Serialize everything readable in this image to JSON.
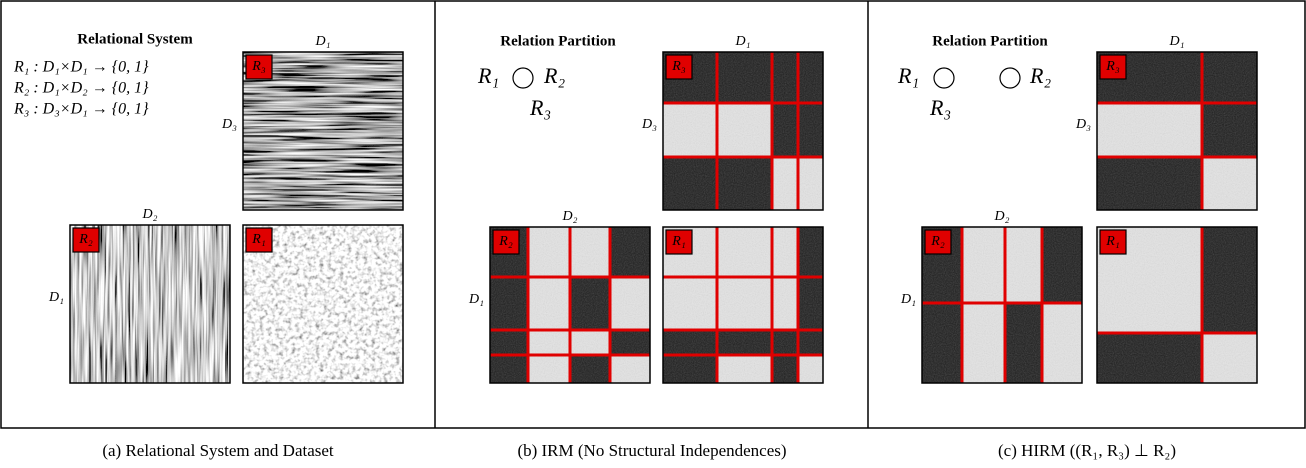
{
  "panels": [
    {
      "title": "Relational System",
      "equations": [
        "R₁ : D₁×D₁ → {0, 1}",
        "R₂ : D₁×D₂ → {0, 1}",
        "R₃ : D₃×D₁ → {0, 1}"
      ],
      "matrices": [
        {
          "badge": "R₃",
          "top_label": "D₁",
          "side_label": "D₃"
        },
        {
          "badge": "R₂",
          "top_label": "D₂",
          "side_label": "D₁"
        },
        {
          "badge": "R₁"
        }
      ],
      "caption": "(a) Relational System and Dataset"
    },
    {
      "title": "Relation Partition",
      "relations": [
        "R₁",
        "R₂",
        "R₃"
      ],
      "matrices": [
        {
          "badge": "R₃",
          "top_label": "D₁",
          "side_label": "D₃"
        },
        {
          "badge": "R₂",
          "top_label": "D₂",
          "side_label": "D₁"
        },
        {
          "badge": "R₁"
        }
      ],
      "caption": "(b) IRM (No Structural Independences)"
    },
    {
      "title": "Relation Partition",
      "relations": [
        "R₁",
        "R₂",
        "R₃"
      ],
      "matrices": [
        {
          "badge": "R₃",
          "top_label": "D₁",
          "side_label": "D₃"
        },
        {
          "badge": "R₂",
          "top_label": "D₂",
          "side_label": "D₁"
        },
        {
          "badge": "R₁"
        }
      ],
      "caption": "(c) HIRM ((R₁, R₃) ⊥ R₂)"
    }
  ]
}
